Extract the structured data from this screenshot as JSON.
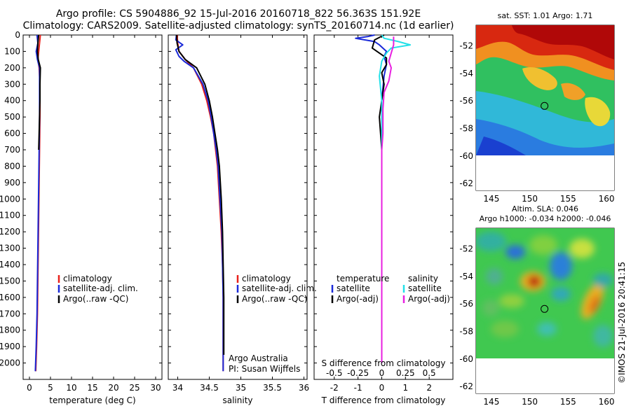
{
  "header": {
    "line1": "Argo profile: CS 5904886_92 15-Jul-2016 20160718_822 56.363S 151.92E",
    "line2": "Climatology: CARS2009. Satellite-adjusted climatology: synTS_20160714.nc (1d earlier)"
  },
  "colors": {
    "climatology": "#e8201a",
    "satellite": "#1a2ad8",
    "argo": "#000000",
    "sat_salinity": "#22e0e8",
    "argo_salinity": "#e820e0"
  },
  "chart_data": [
    {
      "type": "line",
      "name": "temperature-profile",
      "xlabel": "temperature (deg C)",
      "ylabel": "",
      "xlim": [
        -1.5,
        31.5
      ],
      "ylim": [
        2100,
        0
      ],
      "xticks": [
        0,
        5,
        10,
        15,
        20,
        25,
        30
      ],
      "yticks": [
        0,
        100,
        200,
        300,
        400,
        500,
        600,
        700,
        800,
        900,
        1000,
        1100,
        1200,
        1300,
        1400,
        1500,
        1600,
        1700,
        1800,
        1900,
        2000
      ],
      "legend": [
        "climatology",
        "satellite-adj. clim.",
        "Argo(..raw -QC)"
      ],
      "series": [
        {
          "name": "climatology",
          "color": "#e8201a",
          "points": [
            [
              2.6,
              0
            ],
            [
              2.4,
              50
            ],
            [
              2.2,
              100
            ],
            [
              2.0,
              150
            ],
            [
              2.3,
              200
            ],
            [
              2.5,
              300
            ],
            [
              2.5,
              500
            ],
            [
              2.4,
              700
            ],
            [
              2.3,
              900
            ],
            [
              2.2,
              1100
            ],
            [
              2.1,
              1300
            ],
            [
              2.0,
              1500
            ],
            [
              1.9,
              1700
            ],
            [
              1.7,
              1900
            ],
            [
              1.5,
              2050
            ]
          ]
        },
        {
          "name": "satellite-adj. clim.",
          "color": "#1a2ad8",
          "points": [
            [
              1.8,
              0
            ],
            [
              2.0,
              50
            ],
            [
              1.6,
              100
            ],
            [
              1.9,
              150
            ],
            [
              2.4,
              200
            ],
            [
              2.4,
              300
            ],
            [
              2.4,
              500
            ],
            [
              2.3,
              700
            ],
            [
              2.2,
              900
            ],
            [
              2.1,
              1100
            ],
            [
              2.0,
              1300
            ],
            [
              1.9,
              1500
            ],
            [
              1.8,
              1700
            ],
            [
              1.6,
              1900
            ],
            [
              1.4,
              2050
            ]
          ]
        },
        {
          "name": "Argo(..raw -QC)",
          "color": "#000000",
          "points": [
            [
              2.2,
              0
            ],
            [
              2.0,
              50
            ],
            [
              1.9,
              100
            ],
            [
              2.1,
              150
            ],
            [
              2.6,
              200
            ],
            [
              2.5,
              300
            ],
            [
              2.5,
              400
            ],
            [
              2.4,
              500
            ],
            [
              2.3,
              600
            ],
            [
              2.2,
              700
            ]
          ]
        }
      ]
    },
    {
      "type": "line",
      "name": "salinity-profile",
      "xlabel": "salinity",
      "ylabel": "",
      "xlim": [
        33.85,
        36.05
      ],
      "ylim": [
        2100,
        0
      ],
      "xticks": [
        34,
        34.5,
        35,
        35.5,
        36
      ],
      "xticklabels": [
        "34",
        "34.5",
        "35",
        "35.5",
        "36"
      ],
      "legend": [
        "climatology",
        "satellite-adj. clim.",
        "Argo(..raw -QC)"
      ],
      "series": [
        {
          "name": "climatology",
          "color": "#e8201a",
          "points": [
            [
              33.99,
              0
            ],
            [
              34.0,
              50
            ],
            [
              34.02,
              100
            ],
            [
              34.12,
              150
            ],
            [
              34.25,
              200
            ],
            [
              34.38,
              300
            ],
            [
              34.46,
              400
            ],
            [
              34.52,
              500
            ],
            [
              34.57,
              600
            ],
            [
              34.6,
              700
            ],
            [
              34.63,
              800
            ],
            [
              34.66,
              1000
            ],
            [
              34.69,
              1200
            ],
            [
              34.71,
              1400
            ],
            [
              34.72,
              1600
            ],
            [
              34.72,
              1800
            ],
            [
              34.72,
              2050
            ]
          ]
        },
        {
          "name": "satellite-adj. clim.",
          "color": "#1a2ad8",
          "points": [
            [
              33.98,
              0
            ],
            [
              33.97,
              30
            ],
            [
              34.08,
              60
            ],
            [
              33.97,
              90
            ],
            [
              34.02,
              130
            ],
            [
              34.1,
              160
            ],
            [
              34.25,
              200
            ],
            [
              34.4,
              300
            ],
            [
              34.48,
              400
            ],
            [
              34.53,
              500
            ],
            [
              34.57,
              600
            ],
            [
              34.61,
              700
            ],
            [
              34.64,
              800
            ],
            [
              34.67,
              1000
            ],
            [
              34.7,
              1200
            ],
            [
              34.71,
              1400
            ],
            [
              34.72,
              1600
            ],
            [
              34.72,
              1800
            ],
            [
              34.72,
              2050
            ]
          ]
        },
        {
          "name": "Argo(..raw -QC)",
          "color": "#000000",
          "points": [
            [
              33.98,
              0
            ],
            [
              33.99,
              50
            ],
            [
              34.02,
              100
            ],
            [
              34.12,
              150
            ],
            [
              34.3,
              200
            ],
            [
              34.43,
              300
            ],
            [
              34.5,
              400
            ],
            [
              34.55,
              500
            ],
            [
              34.59,
              600
            ],
            [
              34.63,
              700
            ],
            [
              34.66,
              800
            ],
            [
              34.69,
              1000
            ],
            [
              34.71,
              1200
            ],
            [
              34.72,
              1400
            ],
            [
              34.73,
              1600
            ],
            [
              34.73,
              1800
            ],
            [
              34.73,
              1950
            ]
          ]
        }
      ],
      "notes": [
        "Argo Australia",
        "PI: Susan Wijffels"
      ]
    },
    {
      "type": "line",
      "name": "difference-profile",
      "xlabel": "T difference from climatology",
      "toplabel": "S difference from climatology",
      "xlim": [
        -2.85,
        3.0
      ],
      "ylim": [
        2100,
        0
      ],
      "xticks": [
        -2,
        -1,
        0,
        1,
        2
      ],
      "sticks": [
        -0.5,
        -0.25,
        0,
        0.25,
        0.5
      ],
      "sticklabels": [
        "-0.5",
        "-0.25",
        "0",
        "0.25",
        "0.5"
      ],
      "legend_headers": [
        "temperature",
        "salinity"
      ],
      "legend": [
        "satellite",
        "Argo(-adj)",
        "satellite",
        "Argo(-adj)"
      ],
      "series": [
        {
          "name": "satellite",
          "color": "#1a2ad8",
          "points": [
            [
              -0.3,
              0
            ],
            [
              -0.6,
              10
            ],
            [
              -1.1,
              20
            ],
            [
              -0.3,
              40
            ],
            [
              -0.1,
              60
            ],
            [
              0.2,
              100
            ],
            [
              0.1,
              130
            ],
            [
              0.2,
              180
            ],
            [
              0.1,
              250
            ],
            [
              0.0,
              400
            ],
            [
              0.0,
              700
            ],
            [
              0.0,
              1000
            ],
            [
              0.0,
              1500
            ],
            [
              0.0,
              2000
            ]
          ]
        },
        {
          "name": "Argo(-adj)",
          "color": "#000000",
          "points": [
            [
              0.1,
              0
            ],
            [
              -0.3,
              30
            ],
            [
              -0.4,
              80
            ],
            [
              -0.1,
              110
            ],
            [
              0.2,
              140
            ],
            [
              0.2,
              180
            ],
            [
              0.0,
              230
            ],
            [
              0.1,
              300
            ],
            [
              0.0,
              400
            ],
            [
              -0.1,
              500
            ],
            [
              0.0,
              700
            ]
          ]
        },
        {
          "name": "satellite",
          "color": "#22e0e8",
          "points": [
            [
              0.0,
              0
            ],
            [
              0.1,
              20
            ],
            [
              0.7,
              40
            ],
            [
              1.2,
              60
            ],
            [
              0.4,
              80
            ],
            [
              0.2,
              110
            ],
            [
              0.0,
              160
            ],
            [
              -0.1,
              250
            ],
            [
              0.0,
              400
            ],
            [
              0.0,
              800
            ],
            [
              0.0,
              1200
            ],
            [
              0.0,
              1600
            ],
            [
              0.0,
              2000
            ]
          ]
        },
        {
          "name": "Argo(-adj)",
          "color": "#e820e0",
          "points": [
            [
              0.5,
              10
            ],
            [
              0.5,
              60
            ],
            [
              0.4,
              110
            ],
            [
              0.3,
              160
            ],
            [
              0.4,
              200
            ],
            [
              0.3,
              280
            ],
            [
              0.1,
              350
            ],
            [
              0.05,
              450
            ],
            [
              0.05,
              600
            ],
            [
              0.0,
              700
            ],
            [
              0.0,
              1000
            ],
            [
              0.0,
              1500
            ],
            [
              0.0,
              2000
            ]
          ]
        }
      ]
    },
    {
      "type": "heatmap",
      "name": "sst-map",
      "title": "sat. SST: 1.01 Argo: 1.71",
      "xlim": [
        143,
        161
      ],
      "ylim": [
        -62.5,
        -50.5
      ],
      "xticks": [
        145,
        150,
        155,
        160
      ],
      "yticks": [
        -52,
        -54,
        -56,
        -58,
        -60,
        -62
      ],
      "marker": {
        "lon": 151.92,
        "lat": -56.363
      }
    },
    {
      "type": "heatmap",
      "name": "sla-map",
      "title": "Altim. SLA: 0.046",
      "subtitle": "Argo h1000: -0.034 h2000: -0.046",
      "xlim": [
        143,
        161
      ],
      "ylim": [
        -62.5,
        -50.5
      ],
      "xticks": [
        145,
        150,
        155,
        160
      ],
      "yticks": [
        -52,
        -54,
        -56,
        -58,
        -60,
        -62
      ],
      "marker": {
        "lon": 151.92,
        "lat": -56.363
      }
    }
  ],
  "copyright": "©IMOS 21-Jul-2016 20:41:15"
}
